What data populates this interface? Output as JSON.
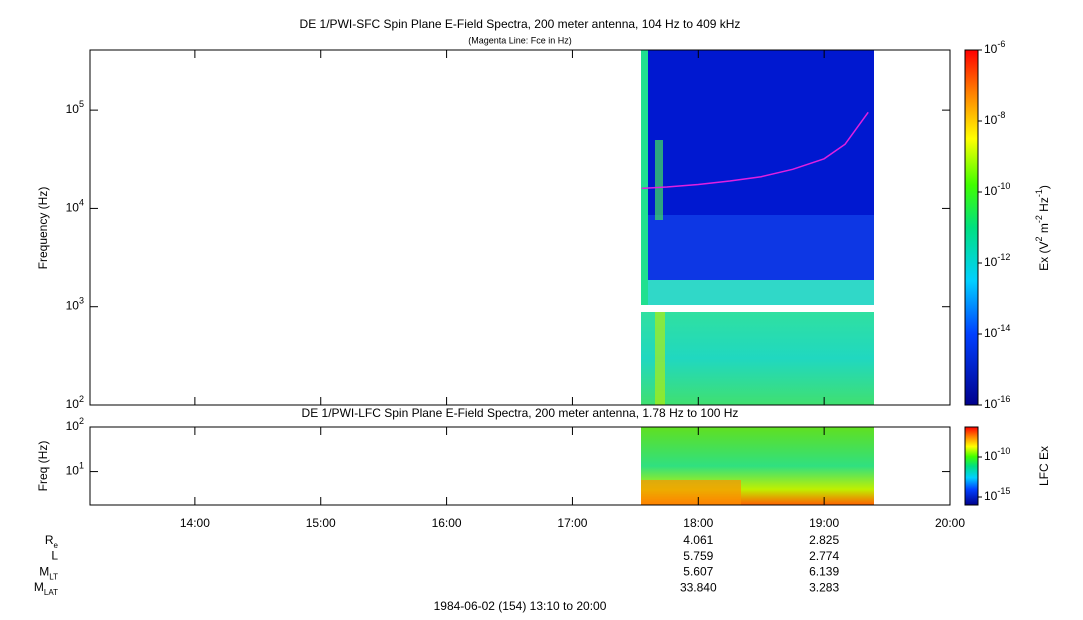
{
  "chart_data": [
    {
      "type": "spectrogram",
      "title": "DE 1/PWI-SFC  Spin Plane E-Field Spectra, 200 meter antenna, 104 Hz to 409 kHz",
      "subtitle": "(Magenta Line: Fce in Hz)",
      "ylabel": "Frequency (Hz)",
      "log_y": true,
      "xlim": [
        "13:10",
        "20:00"
      ],
      "ylim": [
        100,
        409000
      ],
      "yticks": [
        {
          "value": 100,
          "label": "10",
          "exponent": "2"
        },
        {
          "value": 1000,
          "label": "10",
          "exponent": "3"
        },
        {
          "value": 10000,
          "label": "10",
          "exponent": "4"
        },
        {
          "value": 100000,
          "label": "10",
          "exponent": "5"
        }
      ],
      "series": [
        {
          "name": "Fce in Hz",
          "color": "#e020e0",
          "x": [
            "17:33",
            "17:45",
            "18:00",
            "18:15",
            "18:30",
            "18:45",
            "19:00",
            "19:10",
            "19:21"
          ],
          "values": [
            16000,
            16500,
            17500,
            19000,
            21000,
            25000,
            32000,
            45000,
            95000
          ]
        }
      ],
      "colorbar": {
        "label": "Ex (V",
        "label_parts": [
          "2",
          " m",
          "-2",
          " Hz",
          "-1",
          ")"
        ],
        "log": true,
        "lim": [
          1e-16,
          1e-06
        ],
        "ticks": [
          {
            "value": 1e-06,
            "label": "10",
            "exponent": "-6"
          },
          {
            "value": 1e-08,
            "label": "10",
            "exponent": "-8"
          },
          {
            "value": 1e-10,
            "label": "10",
            "exponent": "-10"
          },
          {
            "value": 1e-12,
            "label": "10",
            "exponent": "-12"
          },
          {
            "value": 1e-14,
            "label": "10",
            "exponent": "-14"
          },
          {
            "value": 1e-16,
            "label": "10",
            "exponent": "-16"
          }
        ]
      }
    },
    {
      "type": "spectrogram",
      "title": "DE 1/PWI-LFC  Spin Plane E-Field Spectra, 200 meter antenna, 1.78 Hz to 100 Hz",
      "ylabel": "Freq (Hz)",
      "log_y": true,
      "xlim": [
        "13:10",
        "20:00"
      ],
      "ylim": [
        1.78,
        100
      ],
      "yticks": [
        {
          "value": 10,
          "label": "10",
          "exponent": "1"
        },
        {
          "value": 100,
          "label": "10",
          "exponent": "2"
        }
      ],
      "xticks": [
        "14:00",
        "15:00",
        "16:00",
        "17:00",
        "18:00",
        "19:00",
        "20:00"
      ],
      "colorbar": {
        "label": "LFC Ex",
        "log": true,
        "lim": [
          1e-16,
          5.6e-07
        ],
        "ticks": [
          {
            "value": 1e-10,
            "label": "10",
            "exponent": "-10"
          },
          {
            "value": 1e-15,
            "label": "10",
            "exponent": "-15"
          }
        ]
      }
    }
  ],
  "ephemeris": {
    "rows": [
      {
        "label": "R",
        "subscript": "e",
        "values": [
          "4.061",
          "2.825"
        ]
      },
      {
        "label": "L",
        "values": [
          "5.759",
          "2.774"
        ]
      },
      {
        "label": "M",
        "subscript": "LT",
        "values": [
          "5.607",
          "6.139"
        ]
      },
      {
        "label": "M",
        "subscript": "LAT",
        "values": [
          "33.840",
          "3.283"
        ]
      }
    ]
  },
  "footer": "1984-06-02 (154) 13:10 to 20:00"
}
